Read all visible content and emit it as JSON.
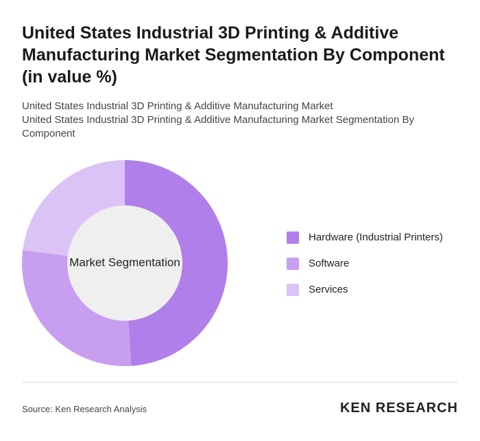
{
  "chart_data": {
    "type": "donut",
    "title": "United States Industrial 3D Printing & Additive Manufacturing Market Segmentation By Component (in value %)",
    "subtitles": [
      "United States Industrial 3D Printing & Additive Manufacturing Market",
      "United States Industrial 3D Printing & Additive Manufacturing Market Segmentation By Component"
    ],
    "center_label": "Market Segmentation",
    "categories": [
      "Hardware (Industrial Printers)",
      "Software",
      "Services"
    ],
    "values": [
      49,
      28,
      23
    ],
    "colors": [
      "#b07fe9",
      "#c89ef0",
      "#dcc3f6"
    ],
    "source": "Source: Ken Research Analysis",
    "brand": "KEN RESEARCH"
  }
}
